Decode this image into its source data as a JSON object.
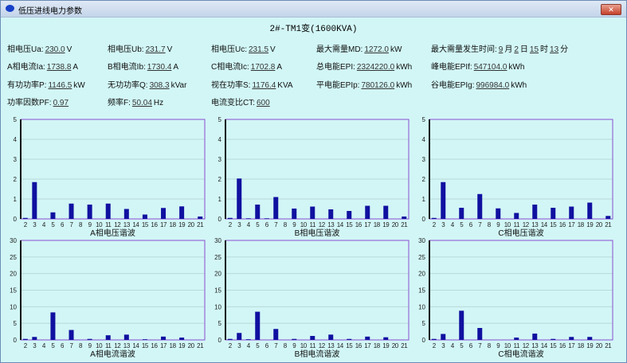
{
  "window": {
    "title": "低压进线电力参数",
    "close_label": "✕"
  },
  "header": {
    "title": "2#-TM1变(1600KVA)"
  },
  "fields": [
    {
      "label": "相电压Ua:",
      "value": "230.0",
      "unit": "V"
    },
    {
      "label": "相电压Ub:",
      "value": "231.7",
      "unit": "V"
    },
    {
      "label": "相电压Uc:",
      "value": "231.5",
      "unit": "V"
    },
    {
      "label": "最大需量MD:",
      "value": "1272.0",
      "unit": "kW"
    },
    {
      "label": "A相电流Ia:",
      "value": "1738.8",
      "unit": "A"
    },
    {
      "label": "B相电流Ib:",
      "value": "1730.4",
      "unit": "A"
    },
    {
      "label": "C相电流Ic:",
      "value": "1702.8",
      "unit": "A"
    },
    {
      "label": "总电能EPI:",
      "value": "2324220.0",
      "unit": "kWh"
    },
    {
      "label": "峰电能EPIf:",
      "value": "547104.0",
      "unit": "kWh"
    },
    {
      "label": "有功功率P:",
      "value": "1146.5",
      "unit": "kW"
    },
    {
      "label": "无功功率Q:",
      "value": "308.3",
      "unit": "kVar"
    },
    {
      "label": "视在功率S:",
      "value": "1176.4",
      "unit": "KVA"
    },
    {
      "label": "平电能EPIp:",
      "value": "780126.0",
      "unit": "kWh"
    },
    {
      "label": "谷电能EPIg:",
      "value": "996984.0",
      "unit": "kWh"
    },
    {
      "label": "功率因数PF:",
      "value": "0.97",
      "unit": ""
    },
    {
      "label": "频率F:",
      "value": "50.04",
      "unit": "Hz"
    },
    {
      "label": "电流变比CT:",
      "value": "600",
      "unit": ""
    }
  ],
  "md_time": {
    "label": "最大需量发生时间:",
    "month": "9",
    "month_unit": "月",
    "day": "2",
    "day_unit": "日",
    "hour": "15",
    "hour_unit": "时",
    "minute": "13",
    "minute_unit": "分"
  },
  "colors": {
    "bar": "#1010a0",
    "background": "#d2f6f6",
    "frame": "#8a4fd0"
  },
  "chart_data": [
    {
      "type": "bar",
      "xlabel": "A相电压谐波",
      "categories": [
        "2",
        "3",
        "4",
        "5",
        "6",
        "7",
        "8",
        "9",
        "10",
        "11",
        "12",
        "13",
        "14",
        "15",
        "16",
        "17",
        "18",
        "19",
        "20",
        "21"
      ],
      "values": [
        0.05,
        1.85,
        0,
        0.33,
        0,
        0.77,
        0,
        0.72,
        0,
        0.77,
        0,
        0.5,
        0,
        0.22,
        0,
        0.55,
        0,
        0.63,
        0,
        0.12
      ],
      "ylim": [
        0,
        5
      ],
      "yticks": [
        "0",
        "1",
        "2",
        "3",
        "4",
        "5"
      ],
      "grid": true
    },
    {
      "type": "bar",
      "xlabel": "B相电压谐波",
      "categories": [
        "2",
        "3",
        "4",
        "5",
        "6",
        "7",
        "8",
        "9",
        "10",
        "11",
        "12",
        "13",
        "14",
        "15",
        "16",
        "17",
        "18",
        "19",
        "20",
        "21"
      ],
      "values": [
        0.05,
        2.03,
        0.03,
        0.72,
        0.03,
        1.1,
        0,
        0.52,
        0,
        0.62,
        0,
        0.48,
        0,
        0.4,
        0,
        0.66,
        0,
        0.66,
        0,
        0.12
      ],
      "ylim": [
        0,
        5
      ],
      "yticks": [
        "0",
        "1",
        "2",
        "3",
        "4",
        "5"
      ],
      "grid": true
    },
    {
      "type": "bar",
      "xlabel": "C相电压谐波",
      "categories": [
        "2",
        "3",
        "4",
        "5",
        "6",
        "7",
        "8",
        "9",
        "10",
        "11",
        "12",
        "13",
        "14",
        "15",
        "16",
        "17",
        "18",
        "19",
        "20",
        "21"
      ],
      "values": [
        0.05,
        1.85,
        0,
        0.56,
        0,
        1.25,
        0,
        0.53,
        0,
        0.3,
        0,
        0.72,
        0,
        0.56,
        0,
        0.62,
        0,
        0.82,
        0,
        0.15
      ],
      "ylim": [
        0,
        5
      ],
      "yticks": [
        "0",
        "1",
        "2",
        "3",
        "4",
        "5"
      ],
      "grid": true
    },
    {
      "type": "bar",
      "xlabel": "A相电流谐波",
      "categories": [
        "2",
        "3",
        "4",
        "5",
        "6",
        "7",
        "8",
        "9",
        "10",
        "11",
        "12",
        "13",
        "14",
        "15",
        "16",
        "17",
        "18",
        "19",
        "20",
        "21"
      ],
      "values": [
        0.3,
        0.9,
        0,
        8.3,
        0,
        3.0,
        0,
        0.3,
        0,
        1.4,
        0,
        1.6,
        0,
        0.2,
        0,
        1.0,
        0,
        0.7,
        0,
        0
      ],
      "ylim": [
        0,
        30
      ],
      "yticks": [
        "0",
        "5",
        "10",
        "15",
        "20",
        "25",
        "30"
      ],
      "grid": true
    },
    {
      "type": "bar",
      "xlabel": "B相电流谐波",
      "categories": [
        "2",
        "3",
        "4",
        "5",
        "6",
        "7",
        "8",
        "9",
        "10",
        "11",
        "12",
        "13",
        "14",
        "15",
        "16",
        "17",
        "18",
        "19",
        "20",
        "21"
      ],
      "values": [
        0.3,
        2.1,
        0.2,
        8.5,
        0,
        3.3,
        0,
        0.3,
        0,
        1.2,
        0,
        1.6,
        0,
        0.3,
        0,
        1.0,
        0,
        0.8,
        0,
        0
      ],
      "ylim": [
        0,
        30
      ],
      "yticks": [
        "0",
        "5",
        "10",
        "15",
        "20",
        "25",
        "30"
      ],
      "grid": true
    },
    {
      "type": "bar",
      "xlabel": "C相电流谐波",
      "categories": [
        "2",
        "3",
        "4",
        "5",
        "6",
        "7",
        "8",
        "9",
        "10",
        "11",
        "12",
        "13",
        "14",
        "15",
        "16",
        "17",
        "18",
        "19",
        "20",
        "21"
      ],
      "values": [
        0.3,
        1.8,
        0,
        8.8,
        0,
        3.6,
        0,
        0,
        0,
        0.7,
        0,
        1.9,
        0,
        0.3,
        0,
        0.9,
        0,
        0.9,
        0,
        0
      ],
      "ylim": [
        0,
        30
      ],
      "yticks": [
        "0",
        "5",
        "10",
        "15",
        "20",
        "25",
        "30"
      ],
      "grid": true
    }
  ]
}
